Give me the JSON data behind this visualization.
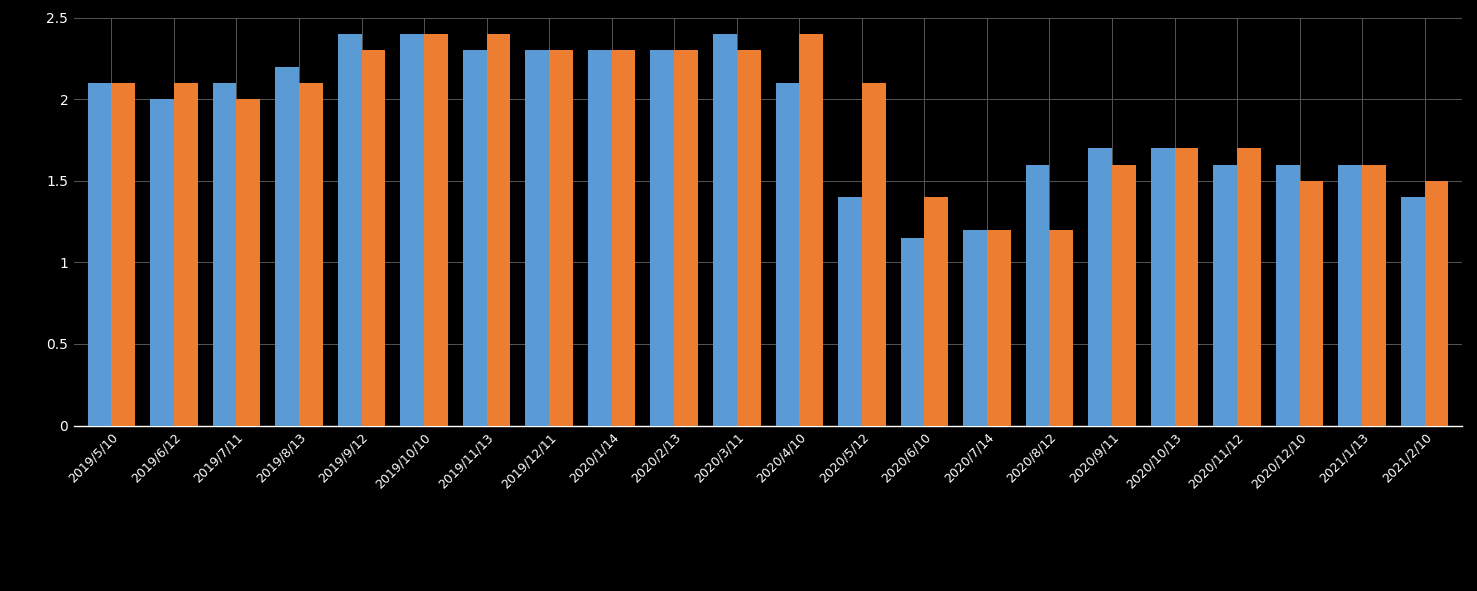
{
  "categories": [
    "2019/5/10",
    "2019/6/12",
    "2019/7/11",
    "2019/8/13",
    "2019/9/12",
    "2019/10/10",
    "2019/11/13",
    "2019/12/11",
    "2020/1/14",
    "2020/2/13",
    "2020/3/11",
    "2020/4/10",
    "2020/5/12",
    "2020/6/10",
    "2020/7/14",
    "2020/8/12",
    "2020/9/11",
    "2020/10/13",
    "2020/11/12",
    "2020/12/10",
    "2021/1/13",
    "2021/2/10"
  ],
  "blue_values": [
    2.1,
    2.0,
    2.1,
    2.2,
    2.4,
    2.4,
    2.3,
    2.3,
    2.3,
    2.3,
    2.4,
    2.1,
    1.4,
    1.15,
    1.2,
    1.6,
    1.7,
    1.7,
    1.6,
    1.6,
    1.6,
    1.4
  ],
  "orange_values": [
    2.1,
    2.1,
    2.0,
    2.1,
    2.3,
    2.4,
    2.4,
    2.3,
    2.3,
    2.3,
    2.3,
    2.4,
    2.1,
    1.4,
    1.2,
    1.2,
    1.6,
    1.7,
    1.7,
    1.5,
    1.6,
    1.5
  ],
  "blue_color": "#5B9BD5",
  "orange_color": "#ED7D31",
  "background_color": "#000000",
  "text_color": "#ffffff",
  "grid_color": "#555555",
  "ylim": [
    0,
    2.5
  ],
  "ytick_values": [
    0,
    0.5,
    1.0,
    1.5,
    2.0,
    2.5
  ],
  "ytick_labels": [
    "0",
    "0.5",
    "1",
    "1.5",
    "2",
    "2.5"
  ],
  "bar_width": 0.38,
  "figsize": [
    14.77,
    5.91
  ],
  "dpi": 100
}
